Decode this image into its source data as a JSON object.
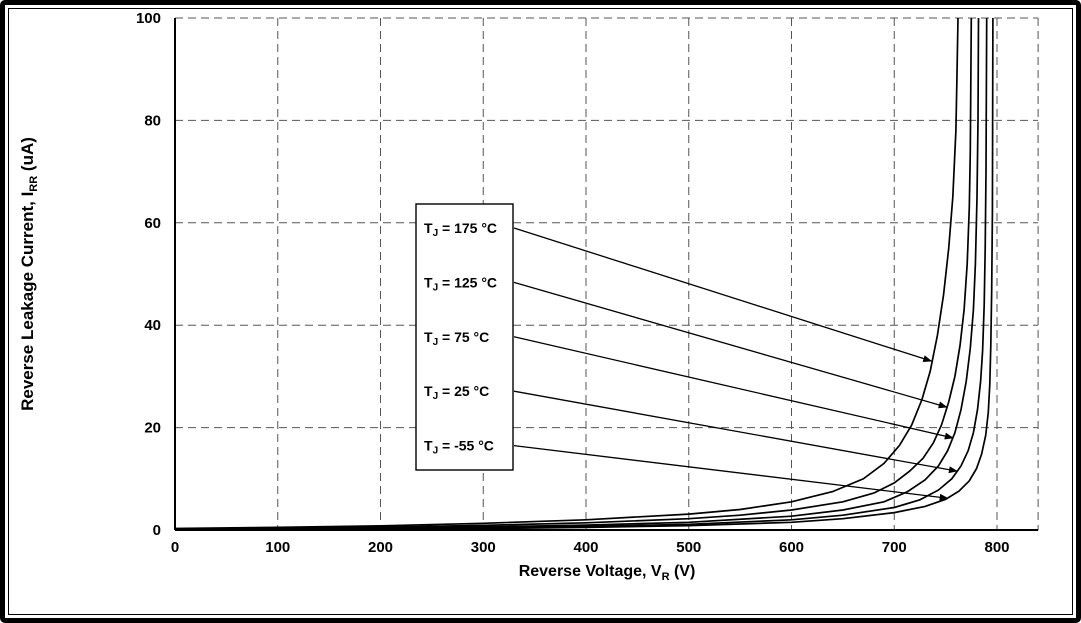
{
  "figure": {
    "background": "#ffffff",
    "border_color": "#000000",
    "grid_color": "#555555",
    "curve_color": "#000000"
  },
  "chart_data": {
    "type": "line",
    "title": "",
    "xlabel_parts": {
      "pre": "Reverse Voltage, V",
      "sub": "R",
      "post": " (V)"
    },
    "ylabel_parts": {
      "pre": "Reverse Leakage Current, I",
      "sub": "RR",
      "post": " (uA)"
    },
    "xlim": [
      0,
      840
    ],
    "ylim": [
      0,
      100
    ],
    "x_ticks": [
      0,
      100,
      200,
      300,
      400,
      500,
      600,
      700,
      800
    ],
    "y_ticks": [
      0,
      20,
      40,
      60,
      80,
      100
    ],
    "grid": "dashed",
    "legend_position": "inside-left-boxed-with-arrows",
    "series": [
      {
        "label_pre": "T",
        "label_sub": "J",
        "label_post": " = 175 °C",
        "temperature_c": 175,
        "arrow_target": [
          736,
          33
        ],
        "points": [
          [
            0,
            0.3
          ],
          [
            100,
            0.5
          ],
          [
            200,
            0.8
          ],
          [
            300,
            1.3
          ],
          [
            400,
            2.0
          ],
          [
            500,
            3.1
          ],
          [
            550,
            4.0
          ],
          [
            600,
            5.5
          ],
          [
            640,
            7.5
          ],
          [
            670,
            10
          ],
          [
            690,
            13
          ],
          [
            705,
            16.5
          ],
          [
            717,
            20.5
          ],
          [
            727,
            25.5
          ],
          [
            735,
            31
          ],
          [
            742,
            38
          ],
          [
            748,
            46
          ],
          [
            753,
            55
          ],
          [
            757,
            65
          ],
          [
            760,
            78
          ],
          [
            761,
            88
          ],
          [
            762,
            100
          ]
        ]
      },
      {
        "label_pre": "T",
        "label_sub": "J",
        "label_post": " = 125 °C",
        "temperature_c": 125,
        "arrow_target": [
          751,
          24
        ],
        "points": [
          [
            0,
            0.2
          ],
          [
            100,
            0.35
          ],
          [
            200,
            0.55
          ],
          [
            300,
            0.9
          ],
          [
            400,
            1.4
          ],
          [
            500,
            2.2
          ],
          [
            550,
            2.9
          ],
          [
            600,
            3.9
          ],
          [
            650,
            5.5
          ],
          [
            680,
            7.2
          ],
          [
            700,
            9.2
          ],
          [
            715,
            11.5
          ],
          [
            728,
            14
          ],
          [
            738,
            17
          ],
          [
            746,
            20.5
          ],
          [
            753,
            25
          ],
          [
            759,
            30
          ],
          [
            764,
            36
          ],
          [
            768,
            43
          ],
          [
            771,
            52
          ],
          [
            773,
            63
          ],
          [
            774,
            74
          ],
          [
            775,
            100
          ]
        ]
      },
      {
        "label_pre": "T",
        "label_sub": "J",
        "label_post": " = 75 °C",
        "temperature_c": 75,
        "arrow_target": [
          757,
          18
        ],
        "points": [
          [
            0,
            0.1
          ],
          [
            100,
            0.2
          ],
          [
            200,
            0.35
          ],
          [
            300,
            0.6
          ],
          [
            400,
            0.95
          ],
          [
            500,
            1.5
          ],
          [
            600,
            2.7
          ],
          [
            650,
            3.9
          ],
          [
            690,
            5.5
          ],
          [
            713,
            7.5
          ],
          [
            730,
            9.8
          ],
          [
            743,
            12.5
          ],
          [
            752,
            15.5
          ],
          [
            759,
            19
          ],
          [
            765,
            23.5
          ],
          [
            770,
            29
          ],
          [
            774,
            35.5
          ],
          [
            777,
            43
          ],
          [
            779,
            52
          ],
          [
            780.5,
            65
          ],
          [
            781.5,
            80
          ],
          [
            782,
            100
          ]
        ]
      },
      {
        "label_pre": "T",
        "label_sub": "J",
        "label_post": " = 25 °C",
        "temperature_c": 25,
        "arrow_target": [
          761,
          11.5
        ],
        "points": [
          [
            0,
            0.07
          ],
          [
            100,
            0.13
          ],
          [
            200,
            0.25
          ],
          [
            300,
            0.42
          ],
          [
            400,
            0.7
          ],
          [
            500,
            1.1
          ],
          [
            600,
            2.0
          ],
          [
            650,
            2.9
          ],
          [
            700,
            4.4
          ],
          [
            725,
            5.9
          ],
          [
            743,
            7.8
          ],
          [
            756,
            10
          ],
          [
            765,
            12.5
          ],
          [
            772,
            15.5
          ],
          [
            777,
            19
          ],
          [
            781,
            23.5
          ],
          [
            784,
            29
          ],
          [
            786,
            35
          ],
          [
            787.5,
            44
          ],
          [
            788.5,
            55
          ],
          [
            789.3,
            70
          ],
          [
            790,
            100
          ]
        ]
      },
      {
        "label_pre": "T",
        "label_sub": "J",
        "label_post": " = -55 °C",
        "temperature_c": -55,
        "arrow_target": [
          752,
          6.2
        ],
        "points": [
          [
            0,
            0.05
          ],
          [
            100,
            0.1
          ],
          [
            200,
            0.18
          ],
          [
            300,
            0.3
          ],
          [
            400,
            0.5
          ],
          [
            500,
            0.85
          ],
          [
            600,
            1.5
          ],
          [
            650,
            2.2
          ],
          [
            700,
            3.4
          ],
          [
            730,
            4.6
          ],
          [
            750,
            6.0
          ],
          [
            763,
            7.6
          ],
          [
            773,
            9.6
          ],
          [
            780,
            12
          ],
          [
            785,
            14.8
          ],
          [
            789,
            18.5
          ],
          [
            791.5,
            23
          ],
          [
            793,
            28.5
          ],
          [
            794,
            36
          ],
          [
            794.8,
            47
          ],
          [
            795.5,
            62
          ],
          [
            796,
            100
          ]
        ]
      }
    ]
  }
}
